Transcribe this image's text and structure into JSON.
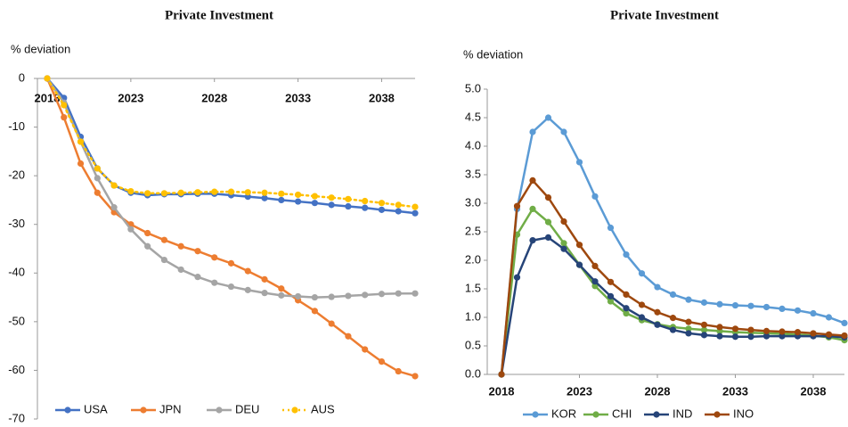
{
  "chart_data": [
    {
      "type": "line",
      "title": "Private Investment",
      "y_label": "% deviation",
      "x": [
        2018,
        2019,
        2020,
        2021,
        2022,
        2023,
        2024,
        2025,
        2026,
        2027,
        2028,
        2029,
        2030,
        2031,
        2032,
        2033,
        2034,
        2035,
        2036,
        2037,
        2038,
        2039,
        2040
      ],
      "xlim": [
        2018,
        2040
      ],
      "xticks": [
        2018,
        2023,
        2028,
        2033,
        2038
      ],
      "ylim": [
        -70,
        0
      ],
      "yticks": [
        0,
        -10,
        -20,
        -30,
        -40,
        -50,
        -60,
        -70
      ],
      "grid": false,
      "legend": "bottom",
      "series": [
        {
          "name": "USA",
          "color": "#4472c4",
          "values": [
            0,
            -4,
            -12,
            -18.5,
            -22,
            -23.5,
            -24,
            -23.8,
            -23.8,
            -23.7,
            -23.7,
            -24,
            -24.3,
            -24.6,
            -25,
            -25.3,
            -25.6,
            -26,
            -26.3,
            -26.6,
            -27,
            -27.3,
            -27.7
          ]
        },
        {
          "name": "JPN",
          "color": "#ed7d31",
          "values": [
            0,
            -8,
            -17.5,
            -23.5,
            -27.5,
            -30,
            -31.8,
            -33.2,
            -34.5,
            -35.5,
            -36.8,
            -38,
            -39.6,
            -41.3,
            -43.2,
            -45.6,
            -47.8,
            -50.4,
            -53,
            -55.7,
            -58.2,
            -60.2,
            -61.2
          ]
        },
        {
          "name": "DEU",
          "color": "#a5a5a5",
          "values": [
            0,
            -5,
            -13,
            -20.5,
            -26.5,
            -31,
            -34.5,
            -37.3,
            -39.3,
            -40.8,
            -42,
            -42.8,
            -43.5,
            -44.1,
            -44.6,
            -44.8,
            -45,
            -44.9,
            -44.7,
            -44.5,
            -44.3,
            -44.2,
            -44.2
          ]
        },
        {
          "name": "AUS",
          "color": "#ffc000",
          "line_style": "dotted",
          "values": [
            0,
            -5.5,
            -13,
            -18.5,
            -22,
            -23.2,
            -23.6,
            -23.6,
            -23.5,
            -23.4,
            -23.3,
            -23.3,
            -23.4,
            -23.5,
            -23.7,
            -23.9,
            -24.2,
            -24.5,
            -24.8,
            -25.2,
            -25.6,
            -26,
            -26.4
          ]
        }
      ]
    },
    {
      "type": "line",
      "title": "Private Investment",
      "y_label": "% deviation",
      "x": [
        2018,
        2019,
        2020,
        2021,
        2022,
        2023,
        2024,
        2025,
        2026,
        2027,
        2028,
        2029,
        2030,
        2031,
        2032,
        2033,
        2034,
        2035,
        2036,
        2037,
        2038,
        2039,
        2040
      ],
      "xlim": [
        2018,
        2040
      ],
      "xticks": [
        2018,
        2023,
        2028,
        2033,
        2038
      ],
      "ylim": [
        0,
        5
      ],
      "yticks": [
        {
          "value": 0,
          "label": "0.0"
        },
        0.5,
        {
          "value": 1,
          "label": "1.0"
        },
        1.5,
        {
          "value": 2,
          "label": "2.0"
        },
        2.5,
        {
          "value": 3,
          "label": "3.0"
        },
        3.5,
        {
          "value": 4,
          "label": "4.0"
        },
        4.5,
        {
          "value": 5,
          "label": "5.0"
        }
      ],
      "grid": false,
      "legend": "bottom",
      "series": [
        {
          "name": "KOR",
          "color": "#5b9bd5",
          "values": [
            0,
            2.9,
            4.25,
            4.5,
            4.25,
            3.72,
            3.12,
            2.57,
            2.1,
            1.77,
            1.53,
            1.4,
            1.31,
            1.26,
            1.23,
            1.21,
            1.2,
            1.18,
            1.15,
            1.12,
            1.07,
            1.0,
            0.9
          ]
        },
        {
          "name": "CHI",
          "color": "#70ad47",
          "values": [
            0,
            2.45,
            2.9,
            2.67,
            2.3,
            1.92,
            1.55,
            1.28,
            1.07,
            0.95,
            0.88,
            0.83,
            0.8,
            0.78,
            0.76,
            0.74,
            0.73,
            0.72,
            0.71,
            0.7,
            0.68,
            0.65,
            0.6
          ]
        },
        {
          "name": "IND",
          "color": "#264478",
          "values": [
            0,
            1.7,
            2.35,
            2.4,
            2.2,
            1.92,
            1.63,
            1.37,
            1.16,
            1.0,
            0.87,
            0.78,
            0.72,
            0.69,
            0.67,
            0.66,
            0.66,
            0.67,
            0.67,
            0.67,
            0.67,
            0.67,
            0.65
          ]
        },
        {
          "name": "INO",
          "color": "#9e480e",
          "values": [
            0,
            2.95,
            3.4,
            3.1,
            2.68,
            2.27,
            1.9,
            1.62,
            1.4,
            1.22,
            1.09,
            0.99,
            0.92,
            0.87,
            0.83,
            0.8,
            0.78,
            0.76,
            0.75,
            0.74,
            0.72,
            0.7,
            0.68
          ]
        }
      ]
    }
  ]
}
